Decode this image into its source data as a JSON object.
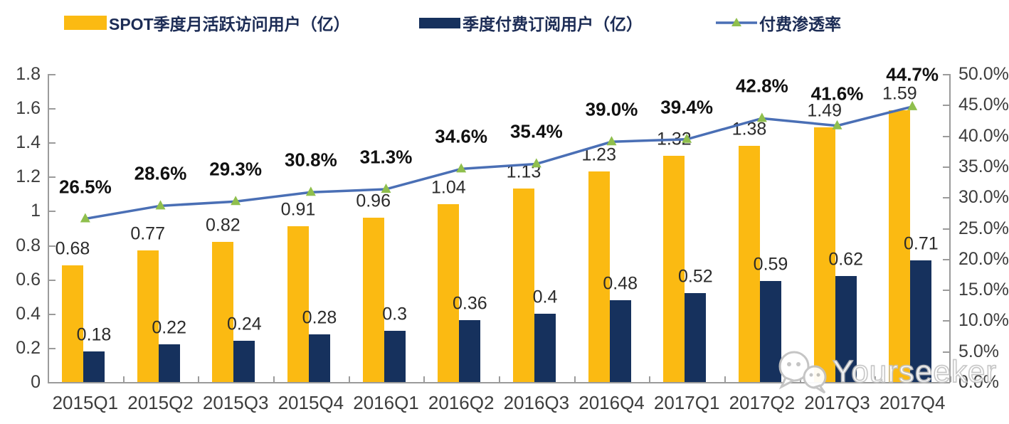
{
  "legend": [
    {
      "label": "SPOT季度月活跃访问用户（亿）",
      "type": "bar",
      "color": "#FBBA12"
    },
    {
      "label": "季度付费订阅用户（亿）",
      "type": "bar",
      "color": "#16315D"
    },
    {
      "label": "付费渗透率",
      "type": "line",
      "color": "#4A6FB5",
      "marker_color": "#8FBF4D"
    }
  ],
  "watermark": {
    "text": "Yourseeker",
    "icon": "wechat-icon"
  },
  "chart_data": {
    "type": "combo-bar-line",
    "title": "",
    "categories": [
      "2015Q1",
      "2015Q2",
      "2015Q3",
      "2015Q4",
      "2016Q1",
      "2016Q2",
      "2016Q3",
      "2016Q4",
      "2017Q1",
      "2017Q2",
      "2017Q3",
      "2017Q4"
    ],
    "series": [
      {
        "name": "SPOT季度月活跃访问用户（亿）",
        "type": "bar",
        "axis": "left",
        "color": "#FBBA12",
        "values": [
          0.68,
          0.77,
          0.82,
          0.91,
          0.96,
          1.04,
          1.13,
          1.23,
          1.32,
          1.38,
          1.49,
          1.59
        ],
        "labels": [
          "0.68",
          "0.77",
          "0.82",
          "0.91",
          "0.96",
          "1.04",
          "1.13",
          "1.23",
          "1.32",
          "1.38",
          "1.49",
          "1.59"
        ]
      },
      {
        "name": "季度付费订阅用户（亿）",
        "type": "bar",
        "axis": "left",
        "color": "#16315D",
        "values": [
          0.18,
          0.22,
          0.24,
          0.28,
          0.3,
          0.36,
          0.4,
          0.48,
          0.52,
          0.59,
          0.62,
          0.71
        ],
        "labels": [
          "0.18",
          "0.22",
          "0.24",
          "0.28",
          "0.3",
          "0.36",
          "0.4",
          "0.48",
          "0.52",
          "0.59",
          "0.62",
          "0.71"
        ]
      },
      {
        "name": "付费渗透率",
        "type": "line",
        "axis": "right",
        "color": "#4A6FB5",
        "marker": "triangle",
        "marker_color": "#8FBF4D",
        "values": [
          26.5,
          28.6,
          29.3,
          30.8,
          31.3,
          34.6,
          35.4,
          39.0,
          39.4,
          42.8,
          41.6,
          44.7
        ],
        "labels": [
          "26.5%",
          "28.6%",
          "29.3%",
          "30.8%",
          "31.3%",
          "34.6%",
          "35.4%",
          "39.0%",
          "39.4%",
          "42.8%",
          "41.6%",
          "44.7%"
        ]
      }
    ],
    "left_axis": {
      "min": 0,
      "max": 1.8,
      "step": 0.2,
      "ticks": [
        "0",
        "0.2",
        "0.4",
        "0.6",
        "0.8",
        "1",
        "1.2",
        "1.4",
        "1.6",
        "1.8"
      ]
    },
    "right_axis": {
      "min": 0,
      "max": 50,
      "step": 5,
      "ticks": [
        "0.0%",
        "5.0%",
        "10.0%",
        "15.0%",
        "20.0%",
        "25.0%",
        "30.0%",
        "35.0%",
        "40.0%",
        "45.0%",
        "50.0%"
      ]
    },
    "grid": false,
    "legend_position": "top"
  }
}
